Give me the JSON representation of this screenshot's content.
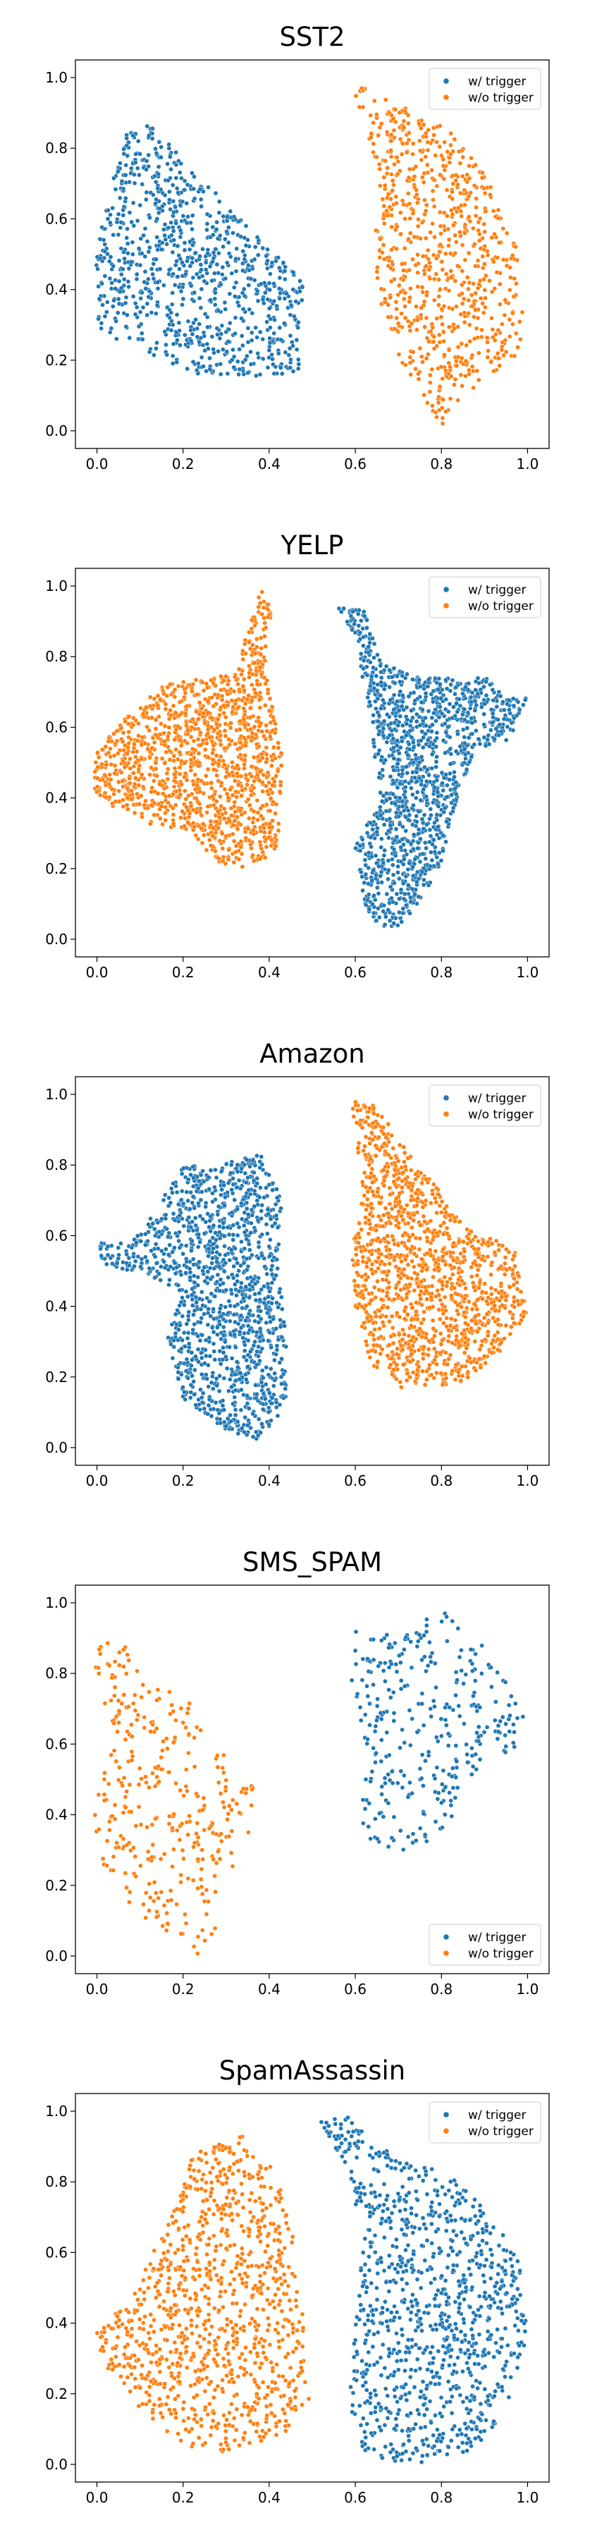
{
  "chart_data": [
    {
      "type": "scatter",
      "title": "SST2",
      "xlim": [
        -0.05,
        1.05
      ],
      "ylim": [
        -0.05,
        1.05
      ],
      "xticks": [
        "0.0",
        "0.2",
        "0.4",
        "0.6",
        "0.8",
        "1.0"
      ],
      "yticks": [
        "0.0",
        "0.2",
        "0.4",
        "0.6",
        "0.8",
        "1.0"
      ],
      "legend_position": "upper right",
      "series": [
        {
          "name": "w/ trigger",
          "color": "#1f77b4",
          "points": 900,
          "region": [
            [
              0.08,
              0.9
            ],
            [
              0.12,
              0.87
            ],
            [
              0.48,
              0.42
            ],
            [
              0.47,
              0.16
            ],
            [
              0.25,
              0.15
            ],
            [
              0.0,
              0.28
            ],
            [
              -0.01,
              0.44
            ],
            [
              0.02,
              0.64
            ],
            [
              0.06,
              0.8
            ]
          ]
        },
        {
          "name": "w/o trigger",
          "color": "#ff7f0e",
          "points": 750,
          "region": [
            [
              0.58,
              0.99
            ],
            [
              0.64,
              0.96
            ],
            [
              0.82,
              0.85
            ],
            [
              0.91,
              0.72
            ],
            [
              0.97,
              0.55
            ],
            [
              0.99,
              0.36
            ],
            [
              0.98,
              0.2
            ],
            [
              0.88,
              0.13
            ],
            [
              0.8,
              0.01
            ],
            [
              0.7,
              0.2
            ],
            [
              0.66,
              0.36
            ],
            [
              0.64,
              0.52
            ],
            [
              0.66,
              0.72
            ],
            [
              0.62,
              0.86
            ]
          ]
        }
      ]
    },
    {
      "type": "scatter",
      "title": "YELP",
      "xlim": [
        -0.05,
        1.05
      ],
      "ylim": [
        -0.05,
        1.05
      ],
      "xticks": [
        "0.0",
        "0.2",
        "0.4",
        "0.6",
        "0.8",
        "1.0"
      ],
      "yticks": [
        "0.0",
        "0.2",
        "0.4",
        "0.6",
        "0.8",
        "1.0"
      ],
      "legend_position": "upper right",
      "series": [
        {
          "name": "w/ trigger",
          "color": "#1f77b4",
          "points": 1300,
          "region": [
            [
              0.56,
              0.94
            ],
            [
              0.62,
              0.93
            ],
            [
              0.66,
              0.78
            ],
            [
              0.76,
              0.74
            ],
            [
              0.9,
              0.74
            ],
            [
              1.0,
              0.68
            ],
            [
              0.96,
              0.56
            ],
            [
              0.88,
              0.54
            ],
            [
              0.84,
              0.42
            ],
            [
              0.8,
              0.22
            ],
            [
              0.74,
              0.08
            ],
            [
              0.67,
              0.01
            ],
            [
              0.62,
              0.1
            ],
            [
              0.6,
              0.26
            ],
            [
              0.66,
              0.4
            ],
            [
              0.64,
              0.56
            ],
            [
              0.62,
              0.72
            ],
            [
              0.6,
              0.85
            ]
          ]
        },
        {
          "name": "w/o trigger",
          "color": "#ff7f0e",
          "points": 1300,
          "region": [
            [
              0.38,
              0.99
            ],
            [
              0.41,
              0.94
            ],
            [
              0.39,
              0.78
            ],
            [
              0.43,
              0.52
            ],
            [
              0.42,
              0.26
            ],
            [
              0.36,
              0.2
            ],
            [
              0.27,
              0.22
            ],
            [
              0.22,
              0.31
            ],
            [
              0.13,
              0.32
            ],
            [
              0.04,
              0.37
            ],
            [
              -0.01,
              0.42
            ],
            [
              0.0,
              0.53
            ],
            [
              0.07,
              0.64
            ],
            [
              0.17,
              0.73
            ],
            [
              0.28,
              0.74
            ],
            [
              0.33,
              0.78
            ],
            [
              0.36,
              0.92
            ]
          ]
        }
      ]
    },
    {
      "type": "scatter",
      "title": "Amazon",
      "xlim": [
        -0.05,
        1.05
      ],
      "ylim": [
        -0.05,
        1.05
      ],
      "xticks": [
        "0.0",
        "0.2",
        "0.4",
        "0.6",
        "0.8",
        "1.0"
      ],
      "yticks": [
        "0.0",
        "0.2",
        "0.4",
        "0.6",
        "0.8",
        "1.0"
      ],
      "legend_position": "upper right",
      "series": [
        {
          "name": "w/ trigger",
          "color": "#1f77b4",
          "points": 1300,
          "region": [
            [
              -0.01,
              0.58
            ],
            [
              0.08,
              0.58
            ],
            [
              0.14,
              0.68
            ],
            [
              0.2,
              0.8
            ],
            [
              0.28,
              0.8
            ],
            [
              0.38,
              0.83
            ],
            [
              0.43,
              0.7
            ],
            [
              0.42,
              0.54
            ],
            [
              0.44,
              0.35
            ],
            [
              0.44,
              0.12
            ],
            [
              0.38,
              0.02
            ],
            [
              0.3,
              0.05
            ],
            [
              0.2,
              0.14
            ],
            [
              0.16,
              0.3
            ],
            [
              0.2,
              0.44
            ],
            [
              0.12,
              0.48
            ],
            [
              0.02,
              0.52
            ]
          ]
        },
        {
          "name": "w/o trigger",
          "color": "#ff7f0e",
          "points": 1300,
          "region": [
            [
              0.59,
              0.98
            ],
            [
              0.65,
              0.97
            ],
            [
              0.72,
              0.84
            ],
            [
              0.8,
              0.72
            ],
            [
              0.87,
              0.62
            ],
            [
              0.97,
              0.56
            ],
            [
              1.0,
              0.38
            ],
            [
              0.93,
              0.26
            ],
            [
              0.84,
              0.18
            ],
            [
              0.7,
              0.17
            ],
            [
              0.64,
              0.23
            ],
            [
              0.6,
              0.38
            ],
            [
              0.59,
              0.56
            ],
            [
              0.62,
              0.72
            ],
            [
              0.6,
              0.86
            ]
          ]
        }
      ]
    },
    {
      "type": "scatter",
      "title": "SMS_SPAM",
      "xlim": [
        -0.05,
        1.05
      ],
      "ylim": [
        -0.05,
        1.05
      ],
      "xticks": [
        "0.0",
        "0.2",
        "0.4",
        "0.6",
        "0.8",
        "1.0"
      ],
      "yticks": [
        "0.0",
        "0.2",
        "0.4",
        "0.6",
        "0.8",
        "1.0"
      ],
      "legend_position": "lower right",
      "series": [
        {
          "name": "w/ trigger",
          "color": "#1f77b4",
          "points": 320,
          "region": [
            [
              0.58,
              0.92
            ],
            [
              0.7,
              0.92
            ],
            [
              0.82,
              1.0
            ],
            [
              0.92,
              0.84
            ],
            [
              1.0,
              0.7
            ],
            [
              0.98,
              0.6
            ],
            [
              0.88,
              0.52
            ],
            [
              0.82,
              0.38
            ],
            [
              0.76,
              0.3
            ],
            [
              0.66,
              0.28
            ],
            [
              0.61,
              0.38
            ],
            [
              0.63,
              0.56
            ],
            [
              0.59,
              0.78
            ]
          ]
        },
        {
          "name": "w/o trigger",
          "color": "#ff7f0e",
          "points": 330,
          "region": [
            [
              0.02,
              0.92
            ],
            [
              0.06,
              0.9
            ],
            [
              0.1,
              0.8
            ],
            [
              0.22,
              0.74
            ],
            [
              0.25,
              0.62
            ],
            [
              0.37,
              0.5
            ],
            [
              0.36,
              0.32
            ],
            [
              0.28,
              0.2
            ],
            [
              0.28,
              0.05
            ],
            [
              0.23,
              0.0
            ],
            [
              0.1,
              0.12
            ],
            [
              0.02,
              0.22
            ],
            [
              -0.01,
              0.4
            ],
            [
              0.03,
              0.6
            ],
            [
              -0.01,
              0.82
            ]
          ]
        }
      ]
    },
    {
      "type": "scatter",
      "title": "SpamAssassin",
      "xlim": [
        -0.05,
        1.05
      ],
      "ylim": [
        -0.05,
        1.05
      ],
      "xticks": [
        "0.0",
        "0.2",
        "0.4",
        "0.6",
        "0.8",
        "1.0"
      ],
      "yticks": [
        "0.0",
        "0.2",
        "0.4",
        "0.6",
        "0.8",
        "1.0"
      ],
      "legend_position": "upper right",
      "series": [
        {
          "name": "w/ trigger",
          "color": "#1f77b4",
          "points": 1000,
          "region": [
            [
              0.52,
              0.97
            ],
            [
              0.58,
              0.99
            ],
            [
              0.68,
              0.88
            ],
            [
              0.82,
              0.82
            ],
            [
              0.92,
              0.7
            ],
            [
              0.99,
              0.56
            ],
            [
              1.0,
              0.32
            ],
            [
              0.94,
              0.14
            ],
            [
              0.88,
              0.04
            ],
            [
              0.74,
              0.0
            ],
            [
              0.62,
              0.02
            ],
            [
              0.58,
              0.16
            ],
            [
              0.6,
              0.4
            ],
            [
              0.62,
              0.66
            ],
            [
              0.58,
              0.82
            ]
          ]
        },
        {
          "name": "w/o trigger",
          "color": "#ff7f0e",
          "points": 1000,
          "region": [
            [
              0.22,
              0.88
            ],
            [
              0.34,
              0.93
            ],
            [
              0.42,
              0.82
            ],
            [
              0.46,
              0.62
            ],
            [
              0.48,
              0.4
            ],
            [
              0.5,
              0.2
            ],
            [
              0.44,
              0.08
            ],
            [
              0.3,
              0.03
            ],
            [
              0.2,
              0.05
            ],
            [
              0.1,
              0.16
            ],
            [
              0.02,
              0.28
            ],
            [
              -0.01,
              0.38
            ],
            [
              0.06,
              0.44
            ],
            [
              0.12,
              0.58
            ],
            [
              0.18,
              0.74
            ]
          ]
        }
      ]
    }
  ]
}
